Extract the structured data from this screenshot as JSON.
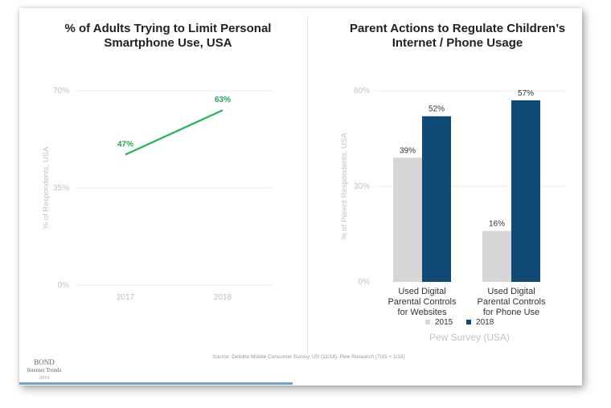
{
  "source_text": "Source: Deloitte Mobile Consumer Survey, US (11/18). Pew Research (7/15 + 1/18)",
  "footer": {
    "brand": "BOND",
    "sub": "Internet Trends",
    "year": "2019"
  },
  "colors": {
    "line": "#1db954",
    "bar2015": "#d6d6d6",
    "bar2018": "#0e4a73",
    "label_green": "#1ca94f"
  },
  "chart_data": [
    {
      "type": "line",
      "title": "% of Adults Trying to Limit Personal Smartphone Use, USA",
      "ylabel": "% of Respondents, USA",
      "xlabel": "",
      "x": [
        "2017",
        "2018"
      ],
      "values": [
        47,
        63
      ],
      "value_labels": [
        "47%",
        "63%"
      ],
      "ylim": [
        0,
        70
      ],
      "yticks": [
        "0%",
        "35%",
        "70%"
      ],
      "grid": true
    },
    {
      "type": "bar",
      "title": "Parent Actions to Regulate Children’s Internet / Phone Usage",
      "ylabel": "% of Parent Respondents, USA",
      "xlabel": "Pew Survey (USA)",
      "categories": [
        [
          "Used Digital",
          "Parental Controls",
          "for Websites"
        ],
        [
          "Used Digital",
          "Parental Controls",
          "for Phone Use"
        ]
      ],
      "series": [
        {
          "name": "2015",
          "values": [
            39,
            16
          ],
          "labels": [
            "39%",
            "16%"
          ]
        },
        {
          "name": "2018",
          "values": [
            52,
            57
          ],
          "labels": [
            "52%",
            "57%"
          ]
        }
      ],
      "ylim": [
        0,
        60
      ],
      "yticks": [
        "0%",
        "30%",
        "60%"
      ],
      "legend": "bottom",
      "grid": true
    }
  ]
}
